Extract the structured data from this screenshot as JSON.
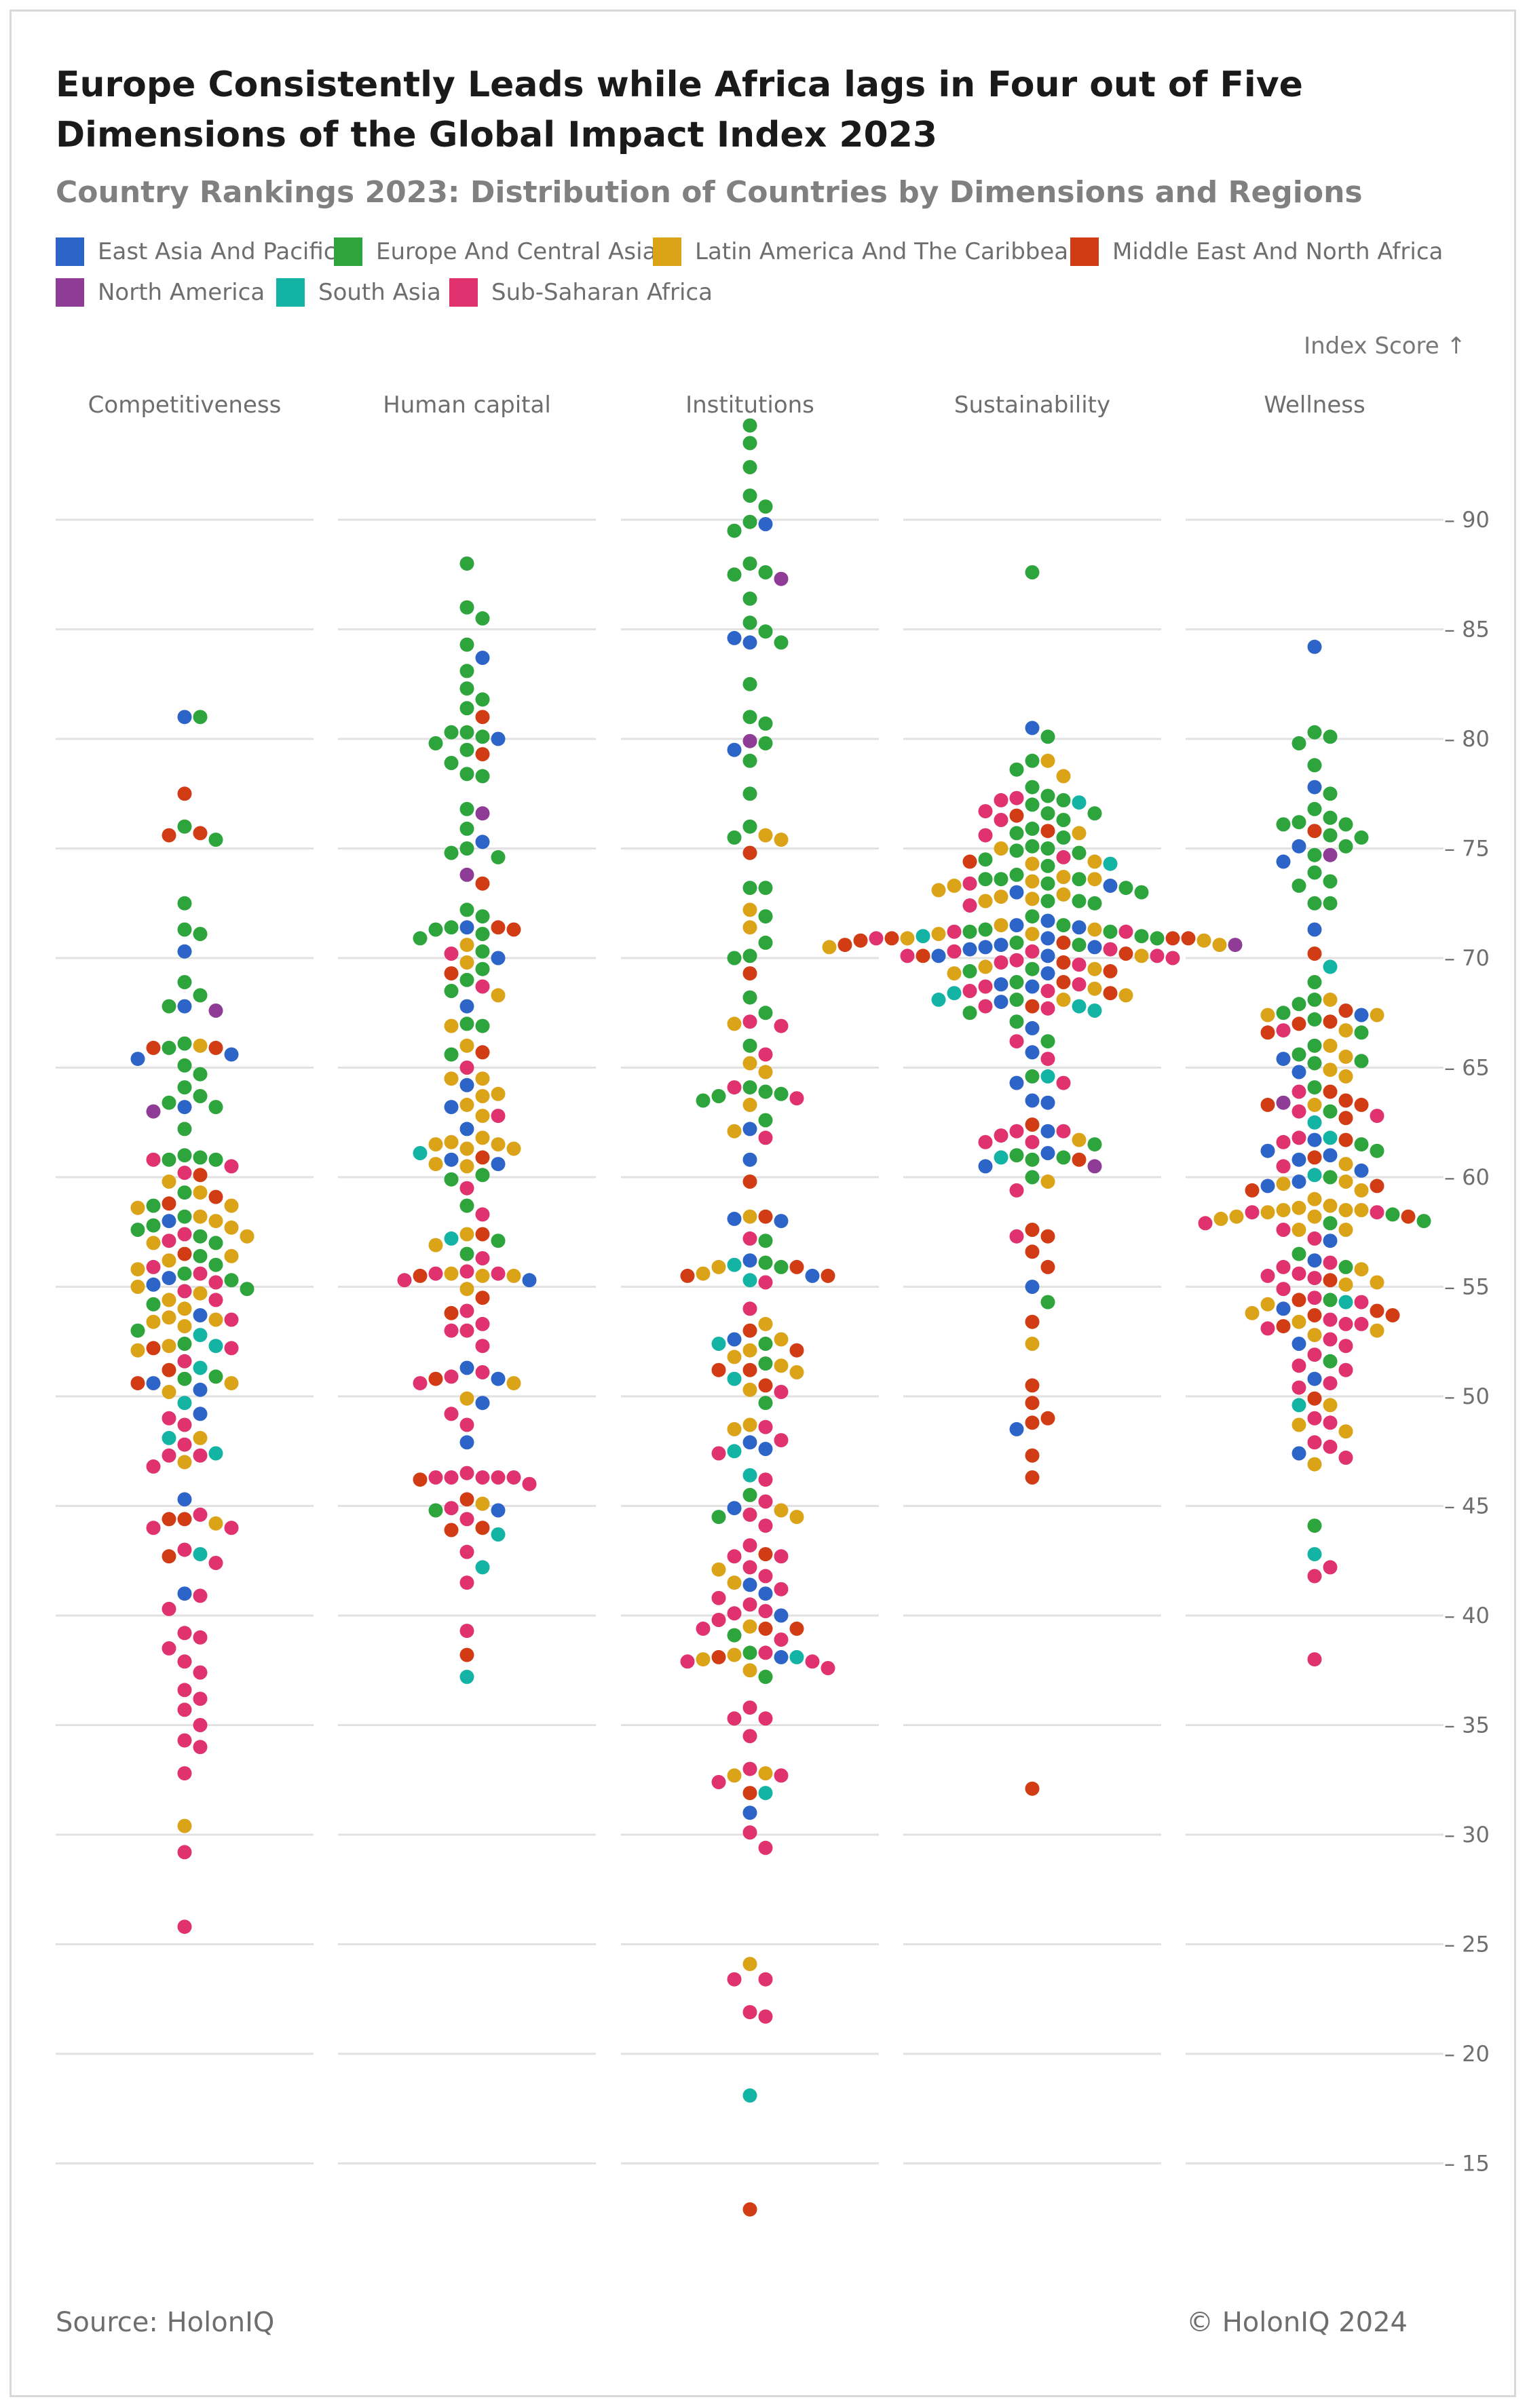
{
  "chart_data": {
    "type": "scatter",
    "title": "Europe Consistently Leads while Africa lags in Four out of Five Dimensions of the Global Impact Index 2023",
    "subtitle": "Country Rankings 2023: Distribution of Countries by Dimensions and Regions",
    "ylabel": "Index Score ↑",
    "ylim": [
      10,
      95
    ],
    "yticks": [
      90,
      85,
      80,
      75,
      70,
      65,
      60,
      55,
      50,
      45,
      40,
      35,
      30,
      25,
      20,
      15
    ],
    "ytick_labels": [
      "– 90",
      "– 85",
      "– 80",
      "– 75",
      "– 70",
      "– 65",
      "– 60",
      "– 55",
      "– 50",
      "– 45",
      "– 40",
      "– 35",
      "– 30",
      "– 25",
      "– 20",
      "– 15"
    ],
    "legend_position": "top",
    "grid": true,
    "categories": [
      "Competitiveness",
      "Human capital",
      "Institutions",
      "Sustainability",
      "Wellness"
    ],
    "regions": [
      {
        "name": "East Asia And Pacific",
        "color": "#2d64c8"
      },
      {
        "name": "Europe And Central Asia",
        "color": "#2da43c"
      },
      {
        "name": "Latin America And The Caribbean",
        "color": "#dba317"
      },
      {
        "name": "Middle East And North Africa",
        "color": "#d23c14"
      },
      {
        "name": "North America",
        "color": "#8e3c96"
      },
      {
        "name": "South Asia",
        "color": "#14b4a5"
      },
      {
        "name": "Sub-Saharan Africa",
        "color": "#e0326e"
      }
    ],
    "series": [
      {
        "dimension": "Competitiveness",
        "points": {
          "East Asia And Pacific": [
            81.0,
            70.3,
            67.8,
            65.6,
            65.4,
            63.2,
            58.0,
            55.4,
            55.1,
            53.7,
            50.6,
            50.3,
            49.2,
            45.3,
            41.0
          ],
          "Europe And Central Asia": [
            81.0,
            76.0,
            75.4,
            72.5,
            71.3,
            71.1,
            68.9,
            68.3,
            67.8,
            66.1,
            65.9,
            65.1,
            64.7,
            64.1,
            63.7,
            63.4,
            63.2,
            62.2,
            61.0,
            60.9,
            60.8,
            60.8,
            59.3,
            58.7,
            58.2,
            57.8,
            57.6,
            57.3,
            57.0,
            56.4,
            56.0,
            55.6,
            55.3,
            54.9,
            54.2,
            53.0,
            52.4,
            50.9,
            50.8
          ],
          "Latin America And The Caribbean": [
            66.0,
            59.8,
            59.3,
            58.7,
            58.6,
            58.2,
            58.0,
            57.7,
            57.3,
            57.0,
            56.4,
            56.2,
            55.8,
            55.0,
            54.7,
            54.4,
            54.0,
            53.6,
            53.5,
            53.4,
            53.2,
            52.3,
            52.1,
            50.6,
            50.2,
            48.1,
            47.0,
            44.2,
            30.4
          ],
          "Middle East And North Africa": [
            77.5,
            75.7,
            75.6,
            65.9,
            65.9,
            60.1,
            59.1,
            58.8,
            56.5,
            52.2,
            51.2,
            50.6,
            44.4,
            44.4,
            42.7
          ],
          "North America": [
            67.6,
            63.0
          ],
          "South Asia": [
            52.8,
            52.3,
            51.3,
            49.7,
            48.1,
            47.4,
            42.8
          ],
          "Sub-Saharan Africa": [
            60.8,
            60.5,
            60.2,
            57.4,
            57.1,
            55.9,
            55.6,
            55.2,
            54.8,
            54.4,
            53.5,
            52.2,
            51.6,
            49.0,
            48.7,
            47.8,
            47.3,
            47.3,
            46.8,
            44.6,
            44.0,
            44.0,
            43.0,
            42.4,
            40.9,
            40.3,
            39.2,
            39.0,
            38.5,
            37.9,
            37.4,
            36.6,
            36.2,
            35.7,
            35.0,
            34.3,
            34.0,
            32.8,
            29.2,
            25.8
          ]
        }
      },
      {
        "dimension": "Human capital",
        "points": {
          "East Asia And Pacific": [
            83.7,
            80.0,
            75.3,
            71.4,
            70.0,
            67.8,
            64.2,
            63.2,
            62.2,
            60.8,
            60.6,
            55.3,
            51.3,
            50.8,
            49.7,
            47.9,
            44.8
          ],
          "Europe And Central Asia": [
            88.0,
            86.0,
            85.5,
            84.3,
            83.1,
            82.3,
            81.8,
            81.4,
            80.3,
            80.3,
            80.1,
            79.8,
            79.5,
            78.9,
            78.4,
            78.3,
            76.8,
            75.9,
            75.0,
            74.8,
            74.6,
            72.2,
            71.9,
            71.4,
            71.3,
            71.1,
            70.9,
            70.3,
            69.5,
            69.0,
            68.5,
            67.0,
            66.9,
            65.6,
            60.1,
            59.9,
            58.7,
            57.1,
            56.5,
            44.8
          ],
          "Latin America And The Caribbean": [
            70.6,
            69.8,
            68.3,
            66.9,
            66.0,
            64.5,
            64.5,
            63.8,
            63.7,
            63.3,
            62.8,
            61.8,
            61.6,
            61.5,
            61.5,
            61.3,
            61.3,
            60.6,
            60.5,
            57.4,
            56.9,
            55.6,
            55.5,
            55.5,
            54.9,
            50.6,
            49.9,
            45.1
          ],
          "Middle East And North Africa": [
            81.0,
            79.3,
            73.4,
            71.4,
            71.3,
            69.3,
            65.7,
            60.9,
            57.4,
            55.5,
            54.5,
            53.8,
            50.8,
            46.2,
            45.3,
            44.0,
            43.9,
            38.2
          ],
          "North America": [
            76.6,
            73.8
          ],
          "South Asia": [
            61.1,
            57.2,
            43.7,
            42.2,
            37.2
          ],
          "Sub-Saharan Africa": [
            70.2,
            68.7,
            65.0,
            62.8,
            59.5,
            58.3,
            56.3,
            55.7,
            55.6,
            55.6,
            55.3,
            53.9,
            53.3,
            53.0,
            53.0,
            52.3,
            51.1,
            50.9,
            50.6,
            49.2,
            48.7,
            46.5,
            46.3,
            46.3,
            46.3,
            46.3,
            46.3,
            46.0,
            44.9,
            44.4,
            42.9,
            41.5,
            39.3
          ]
        }
      },
      {
        "dimension": "Institutions",
        "points": {
          "East Asia And Pacific": [
            89.8,
            84.6,
            84.4,
            79.5,
            62.2,
            60.8,
            58.1,
            58.0,
            56.2,
            55.5,
            52.6,
            47.9,
            47.6,
            44.9,
            41.4,
            41.0,
            40.0,
            38.1,
            31.0
          ],
          "Europe And Central Asia": [
            94.3,
            93.5,
            92.4,
            91.1,
            90.6,
            89.9,
            89.5,
            88.0,
            87.6,
            87.5,
            86.4,
            85.3,
            84.9,
            84.4,
            82.5,
            81.0,
            80.7,
            79.8,
            79.0,
            77.5,
            76.0,
            75.5,
            73.2,
            73.2,
            71.9,
            70.7,
            70.1,
            70.0,
            68.2,
            67.5,
            66.0,
            64.1,
            63.9,
            63.8,
            63.7,
            63.5,
            62.6,
            57.1,
            56.1,
            55.9,
            52.4,
            51.5,
            49.7,
            45.5,
            44.5,
            39.1,
            38.3,
            37.2
          ],
          "Latin America And The Caribbean": [
            75.6,
            75.4,
            72.2,
            71.4,
            67.0,
            65.2,
            64.8,
            63.3,
            62.1,
            58.2,
            55.9,
            55.6,
            53.3,
            52.6,
            52.1,
            51.8,
            51.4,
            51.1,
            50.3,
            48.7,
            48.5,
            44.8,
            44.5,
            42.1,
            41.5,
            39.5,
            38.2,
            38.0,
            37.5,
            32.8,
            32.7,
            24.1
          ],
          "Middle East And North Africa": [
            74.8,
            69.3,
            59.8,
            58.2,
            55.9,
            55.5,
            55.5,
            53.0,
            52.1,
            51.2,
            51.2,
            50.5,
            42.8,
            39.4,
            39.4,
            38.1,
            31.9,
            12.9
          ],
          "North America": [
            87.3,
            79.9
          ],
          "South Asia": [
            56.0,
            55.3,
            52.4,
            50.8,
            47.5,
            46.4,
            38.1,
            31.9,
            18.1
          ],
          "Sub-Saharan Africa": [
            67.1,
            66.9,
            65.6,
            64.1,
            63.6,
            61.8,
            57.2,
            55.2,
            54.0,
            50.2,
            48.6,
            48.0,
            47.4,
            46.2,
            45.2,
            44.6,
            44.1,
            43.2,
            42.7,
            42.7,
            42.2,
            41.8,
            41.2,
            40.8,
            40.5,
            40.2,
            40.1,
            39.8,
            39.4,
            38.9,
            38.3,
            37.9,
            37.9,
            37.6,
            35.8,
            35.3,
            35.3,
            34.5,
            33.0,
            32.7,
            32.4,
            30.1,
            29.4,
            23.4,
            23.4,
            21.9,
            21.7
          ]
        }
      },
      {
        "dimension": "Sustainability",
        "points": {
          "East Asia And Pacific": [
            80.5,
            73.3,
            73.0,
            71.7,
            71.5,
            71.4,
            70.9,
            70.6,
            70.5,
            70.5,
            70.4,
            70.1,
            70.1,
            69.3,
            68.8,
            68.7,
            68.0,
            66.8,
            65.7,
            64.3,
            63.5,
            63.4,
            62.1,
            61.1,
            60.5,
            55.0,
            48.5
          ],
          "Europe And Central Asia": [
            87.6,
            80.1,
            79.0,
            78.6,
            77.8,
            77.4,
            77.2,
            77.0,
            76.6,
            76.6,
            76.3,
            75.9,
            75.7,
            75.5,
            75.1,
            75.0,
            74.9,
            74.8,
            74.5,
            74.2,
            73.8,
            73.6,
            73.6,
            73.6,
            73.4,
            73.2,
            73.0,
            72.6,
            72.6,
            72.5,
            71.9,
            71.5,
            71.3,
            71.2,
            71.2,
            71.0,
            70.9,
            70.7,
            70.6,
            69.5,
            69.4,
            68.9,
            68.1,
            67.5,
            67.1,
            66.2,
            64.6,
            61.5,
            61.0,
            60.9,
            60.8,
            60.0,
            54.3
          ],
          "Latin America And The Caribbean": [
            79.0,
            78.3,
            75.7,
            75.0,
            74.4,
            74.3,
            73.7,
            73.6,
            73.5,
            73.3,
            73.1,
            72.9,
            72.8,
            72.7,
            72.6,
            71.5,
            71.3,
            71.1,
            71.1,
            70.9,
            70.8,
            70.6,
            70.5,
            70.1,
            69.6,
            69.5,
            69.3,
            68.6,
            68.3,
            68.1,
            61.7,
            59.8,
            52.4
          ],
          "Middle East And North Africa": [
            76.5,
            75.8,
            74.4,
            70.9,
            70.9,
            70.9,
            70.8,
            70.7,
            70.6,
            70.2,
            70.1,
            69.8,
            69.4,
            68.9,
            68.4,
            67.8,
            62.4,
            60.8,
            57.6,
            57.3,
            56.6,
            55.9,
            53.4,
            50.5,
            49.7,
            49.0,
            48.8,
            47.3,
            46.3,
            32.1
          ],
          "North America": [
            70.6,
            60.5
          ],
          "South Asia": [
            77.1,
            74.3,
            71.0,
            68.4,
            68.1,
            67.8,
            67.6,
            64.6,
            60.9
          ],
          "Sub-Saharan Africa": [
            77.3,
            77.2,
            76.7,
            76.3,
            75.6,
            74.6,
            73.4,
            72.4,
            71.2,
            71.2,
            70.9,
            70.4,
            70.3,
            70.3,
            70.1,
            70.1,
            70.0,
            69.9,
            69.8,
            69.7,
            68.8,
            68.7,
            68.5,
            68.5,
            67.8,
            67.7,
            66.2,
            65.4,
            64.3,
            62.1,
            62.1,
            61.9,
            61.6,
            61.6,
            59.4,
            57.3
          ]
        }
      },
      {
        "dimension": "Wellness",
        "points": {
          "East Asia And Pacific": [
            84.2,
            77.8,
            75.1,
            74.4,
            71.3,
            67.4,
            65.4,
            64.8,
            61.7,
            61.2,
            61.0,
            60.8,
            60.3,
            59.8,
            59.6,
            57.1,
            56.2,
            54.0,
            52.4,
            50.8,
            47.4
          ],
          "Europe And Central Asia": [
            80.3,
            80.1,
            79.8,
            78.8,
            77.5,
            76.8,
            76.4,
            76.2,
            76.1,
            76.1,
            75.6,
            75.5,
            75.1,
            74.7,
            73.9,
            73.5,
            73.3,
            72.5,
            72.5,
            68.9,
            68.1,
            67.9,
            67.5,
            67.2,
            66.6,
            66.0,
            65.6,
            65.3,
            65.2,
            64.1,
            63.0,
            61.5,
            61.2,
            60.0,
            58.3,
            58.0,
            57.9,
            56.5,
            55.9,
            54.4,
            51.6,
            44.1
          ],
          "Latin America And The Caribbean": [
            68.1,
            67.4,
            67.4,
            66.7,
            66.0,
            65.5,
            64.9,
            64.6,
            63.3,
            60.6,
            59.8,
            59.7,
            59.4,
            59.0,
            58.7,
            58.6,
            58.5,
            58.5,
            58.5,
            58.4,
            58.2,
            58.2,
            58.1,
            57.6,
            57.6,
            55.8,
            55.2,
            55.1,
            54.2,
            53.8,
            53.4,
            53.0,
            52.8,
            49.6,
            48.7,
            48.4,
            46.9
          ],
          "Middle East And North Africa": [
            75.8,
            70.2,
            67.6,
            67.1,
            67.0,
            66.6,
            63.9,
            63.5,
            63.3,
            63.3,
            62.7,
            61.7,
            60.9,
            59.6,
            59.4,
            58.2,
            55.3,
            54.4,
            53.9,
            53.7,
            53.7,
            53.2,
            49.9
          ],
          "North America": [
            74.7,
            63.4
          ],
          "South Asia": [
            69.6,
            62.5,
            61.8,
            60.1,
            54.3,
            49.6,
            42.8
          ],
          "Sub-Saharan Africa": [
            66.7,
            63.9,
            63.0,
            62.8,
            61.8,
            61.6,
            60.5,
            58.4,
            58.4,
            57.9,
            57.6,
            57.2,
            56.1,
            55.9,
            55.6,
            55.5,
            55.4,
            54.9,
            54.5,
            54.3,
            53.5,
            53.3,
            53.3,
            53.1,
            52.6,
            52.3,
            51.9,
            51.4,
            51.2,
            50.6,
            50.4,
            49.0,
            48.8,
            47.9,
            47.7,
            47.2,
            42.2,
            41.8,
            38.0
          ]
        }
      }
    ]
  },
  "source": "Source: HolonIQ",
  "copyright": "© HolonIQ 2024"
}
